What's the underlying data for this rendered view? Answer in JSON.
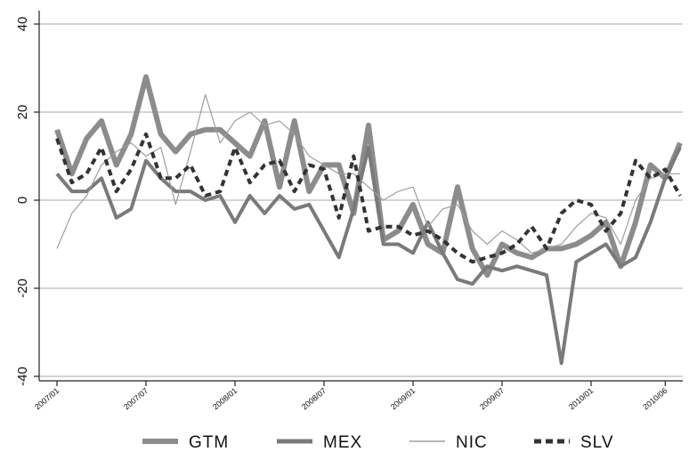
{
  "chart_data": {
    "type": "line",
    "title": "",
    "xlabel": "",
    "ylabel": "",
    "ylim": [
      -40,
      40
    ],
    "yticks": [
      -40,
      -20,
      0,
      20,
      40
    ],
    "xticks": [
      {
        "label": "2007/01",
        "index": 0
      },
      {
        "label": "2007/07",
        "index": 6
      },
      {
        "label": "2008/01",
        "index": 12
      },
      {
        "label": "2008/07",
        "index": 18
      },
      {
        "label": "2009/01",
        "index": 24
      },
      {
        "label": "2009/07",
        "index": 30
      },
      {
        "label": "2010/01",
        "index": 36
      },
      {
        "label": "2010/06",
        "index": 41
      }
    ],
    "grid": "horizontal",
    "legend": "bottom",
    "series": [
      {
        "name": "GTM",
        "color": "#8c8c8c",
        "style": "thick",
        "values": [
          16,
          6,
          14,
          18,
          8,
          15,
          28,
          15,
          11,
          15,
          16,
          16,
          13,
          10,
          18,
          3,
          18,
          2,
          8,
          8,
          -3,
          17,
          -9,
          -7,
          -1,
          -10,
          -12,
          3,
          -11,
          -17,
          -10,
          -12,
          -13,
          -11,
          -11,
          -10,
          -8,
          -5,
          -15,
          -5,
          8,
          5,
          13
        ]
      },
      {
        "name": "MEX",
        "color": "#7a7a7a",
        "style": "medium",
        "values": [
          6,
          2,
          2,
          5,
          -4,
          -2,
          9,
          5,
          2,
          2,
          0,
          1,
          -5,
          1,
          -3,
          1,
          -2,
          -1,
          -7,
          -13,
          -2,
          12,
          -10,
          -10,
          -12,
          -5,
          -12,
          -18,
          -19,
          -15,
          -16,
          -15,
          -16,
          -17,
          -37,
          -14,
          -12,
          -10,
          -15,
          -13,
          -5,
          5,
          12
        ]
      },
      {
        "name": "NIC",
        "color": "#9e9e9e",
        "style": "thin",
        "values": [
          -11,
          -3,
          1,
          8,
          11,
          13,
          10,
          12,
          -1,
          11,
          24,
          13,
          18,
          20,
          17,
          18,
          15,
          10,
          8,
          6,
          6,
          3,
          0,
          2,
          3,
          -6,
          -2,
          -1,
          -7,
          -10,
          -7,
          -9,
          -12,
          -11,
          -10,
          -6,
          -3,
          -4,
          -10,
          0,
          5,
          6,
          6
        ]
      },
      {
        "name": "SLV",
        "color": "#333333",
        "style": "dashed",
        "values": [
          14,
          4,
          6,
          12,
          2,
          7,
          15,
          5,
          5,
          8,
          1,
          2,
          12,
          4,
          8,
          9,
          2,
          8,
          7,
          -4,
          10,
          -7,
          -6,
          -6,
          -8,
          -7,
          -9,
          -12,
          -14,
          -13,
          -12,
          -10,
          -6,
          -11,
          -3,
          0,
          -1,
          -7,
          -3,
          9,
          5,
          7,
          1
        ]
      }
    ]
  }
}
